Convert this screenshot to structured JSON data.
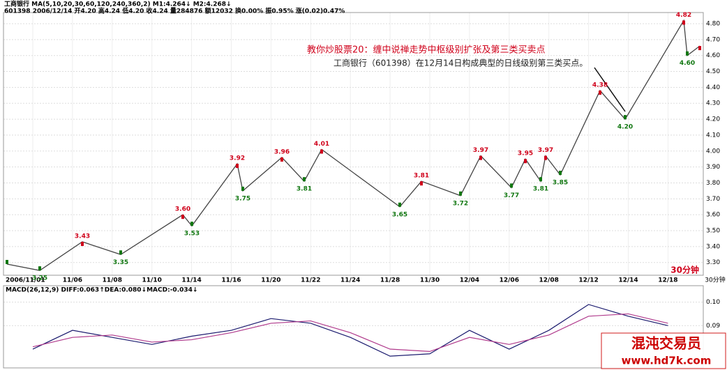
{
  "header": {
    "line1": "工商银行 MA(5,10,20,30,60,120,240,360,2) M1:4.264↓ M2:4.268↓",
    "line2": "601398 2006/12/14 开4.20 高4.24 低4.20 收4.24 量284876 额12032 换0.00% 振0.95% 涨(0.02)0.47%",
    "macd": "MACD(26,12,9) DIFF:0.063↑DEA:0.080↓MACD:-0.034↓"
  },
  "annotation": {
    "title": "教你炒股票20：缠中说禅走势中枢级别扩张及第三类买卖点",
    "text": "工商银行（601398）在12月14日构成典型的日线级别第三类买点。",
    "period": "30分钟",
    "axis_period": "30分钟"
  },
  "watermark": {
    "name": "混沌交易员",
    "url": "www.hd7k.com"
  },
  "chart_data": [
    {
      "type": "line",
      "categories": [
        "2006/11/01",
        "11/06",
        "11/08",
        "11/10",
        "11/14",
        "11/16",
        "11/20",
        "11/22",
        "11/24",
        "11/28",
        "11/30",
        "12/04",
        "12/06",
        "12/08",
        "12/12",
        "12/14",
        "12/18"
      ],
      "ylim": [
        3.22,
        4.87
      ],
      "yticks": [
        {
          "value": 3.3,
          "label": "3.30"
        },
        {
          "value": 3.4,
          "label": "3.40"
        },
        {
          "value": 3.5,
          "label": "3.50"
        },
        {
          "value": 3.6,
          "label": "3.60"
        },
        {
          "value": 3.7,
          "label": "3.70"
        },
        {
          "value": 3.8,
          "label": "3.80"
        },
        {
          "value": 3.9,
          "label": "3.90"
        },
        {
          "value": 4,
          "label": "4.00"
        },
        {
          "value": 4.1,
          "label": "4.10"
        },
        {
          "value": 4.2,
          "label": "4.20"
        },
        {
          "value": 4.3,
          "label": "4.30"
        },
        {
          "value": 4.4,
          "label": "4.40"
        },
        {
          "value": 4.5,
          "label": "4.50"
        },
        {
          "value": 4.6,
          "label": "4.60"
        },
        {
          "value": 4.7,
          "label": "4.70"
        },
        {
          "value": 4.8,
          "label": "4.80"
        }
      ],
      "price": {
        "color": "#444444",
        "values": [
          3.29,
          3.25,
          3.43,
          3.35,
          3.6,
          3.53,
          3.92,
          3.75,
          3.96,
          3.81,
          4.01,
          3.65,
          3.81,
          3.72,
          3.97,
          3.77,
          3.95,
          3.81,
          3.97,
          3.85,
          4.38,
          4.2,
          4.82,
          4.6,
          4.66
        ],
        "value_labels": [
          null,
          "3.25",
          "3.43",
          "3.35",
          "3.60",
          "3.53",
          "3.92",
          "3.75",
          "3.96",
          "3.81",
          "4.01",
          "3.65",
          "3.81",
          "3.72",
          "3.97",
          "3.77",
          "3.95",
          "3.81",
          "3.97",
          "3.85",
          "4.38",
          "4.20",
          "4.82",
          "4.60",
          null
        ]
      },
      "up_color": "#d0021b",
      "down_color": "#117711"
    },
    {
      "type": "line",
      "ylim": [
        0.072,
        0.107
      ],
      "yticks": [
        0.09,
        {
          "value": 0.1,
          "label": "0.10"
        }
      ],
      "series": [
        {
          "color": "#1a1a6e",
          "values": [
            0.08,
            0.088,
            0.085,
            0.082,
            0.0855,
            0.088,
            0.093,
            0.091,
            0.085,
            0.077,
            0.078,
            0.088,
            0.08,
            0.088,
            0.099,
            0.094,
            0.09
          ]
        },
        {
          "color": "#b03a8c",
          "values": [
            0.081,
            0.085,
            0.086,
            0.083,
            0.084,
            0.087,
            0.091,
            0.092,
            0.087,
            0.08,
            0.079,
            0.085,
            0.082,
            0.086,
            0.094,
            0.095,
            0.091
          ]
        }
      ]
    }
  ]
}
